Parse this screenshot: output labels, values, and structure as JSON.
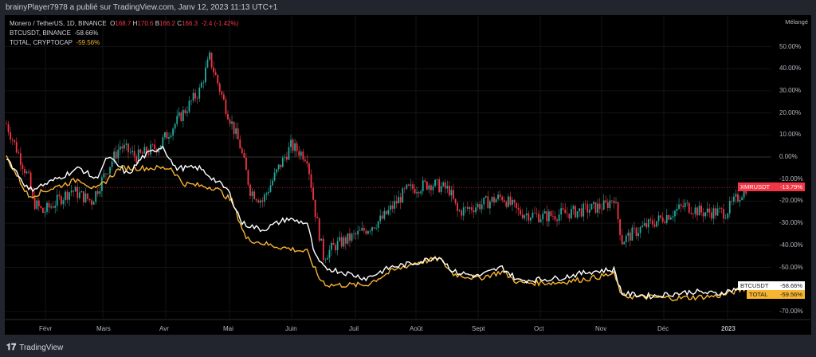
{
  "header": {
    "title": "brainyPlayer7978 a publié sur TradingView.com, Janv 12, 2023 11:13 UTC+1"
  },
  "legend": {
    "symbol": "Monero / TetherUS, 1D, BINANCE",
    "o_label": "O",
    "o": "168.7",
    "h_label": "H",
    "h": "170.6",
    "b_label": "B",
    "b": "166.2",
    "c_label": "C",
    "c": "166.3",
    "change": "-2.4 (-1.42%)",
    "btc": "BTCUSDT, BINANCE",
    "btc_val": "-58.66%",
    "total": "TOTAL, CRYPTOCAP",
    "total_val": "-59.56%"
  },
  "scale_mode": "Mélangé",
  "y_ticks": [
    "50.00%",
    "40.00%",
    "30.00%",
    "20.00%",
    "10.00%",
    "0.00%",
    "-10.00%",
    "-20.00%",
    "-30.00%",
    "-40.00%",
    "-50.00%",
    "-70.00%"
  ],
  "x_ticks": [
    "Févr",
    "Mars",
    "Avr",
    "Mai",
    "Juin",
    "Juil",
    "Août",
    "Sept",
    "Oct",
    "Nov",
    "Déc",
    "2023"
  ],
  "tags": {
    "xmr": {
      "name": "XMRUSDT",
      "value": "-13.79%"
    },
    "btc": {
      "name": "BTCUSDT",
      "value": "-58.66%"
    },
    "total": {
      "name": "TOTAL",
      "value": "-59.56%"
    }
  },
  "footer": {
    "brand": "TradingView"
  },
  "colors": {
    "up": "#26a69a",
    "down": "#f23645",
    "btc": "#ffffff",
    "total": "#f7b530"
  },
  "chart_data": {
    "type": "line",
    "unit": "percent",
    "days": 365,
    "xmr": [
      [
        0,
        15
      ],
      [
        11,
        -10
      ],
      [
        13,
        -20
      ],
      [
        18,
        -25
      ],
      [
        32,
        -15
      ],
      [
        42,
        -20
      ],
      [
        50,
        -5
      ],
      [
        56,
        5
      ],
      [
        64,
        0
      ],
      [
        75,
        5
      ],
      [
        87,
        20
      ],
      [
        95,
        30
      ],
      [
        100,
        45
      ],
      [
        107,
        25
      ],
      [
        115,
        5
      ],
      [
        120,
        -15
      ],
      [
        126,
        -20
      ],
      [
        134,
        -5
      ],
      [
        140,
        5
      ],
      [
        148,
        0
      ],
      [
        152,
        -25
      ],
      [
        156,
        -45
      ],
      [
        162,
        -40
      ],
      [
        173,
        -35
      ],
      [
        185,
        -28
      ],
      [
        197,
        -15
      ],
      [
        209,
        -12
      ],
      [
        218,
        -15
      ],
      [
        222,
        -25
      ],
      [
        232,
        -22
      ],
      [
        244,
        -18
      ],
      [
        252,
        -25
      ],
      [
        264,
        -27
      ],
      [
        279,
        -25
      ],
      [
        295,
        -22
      ],
      [
        299,
        -18
      ],
      [
        303,
        -38
      ],
      [
        311,
        -33
      ],
      [
        322,
        -28
      ],
      [
        334,
        -22
      ],
      [
        342,
        -25
      ],
      [
        354,
        -25
      ],
      [
        364,
        -13.79
      ]
    ],
    "btc": [
      [
        0,
        0
      ],
      [
        11,
        -15
      ],
      [
        20,
        -12
      ],
      [
        36,
        -5
      ],
      [
        44,
        -10
      ],
      [
        50,
        0
      ],
      [
        60,
        -8
      ],
      [
        67,
        0
      ],
      [
        77,
        5
      ],
      [
        83,
        -5
      ],
      [
        95,
        -5
      ],
      [
        109,
        -15
      ],
      [
        116,
        -30
      ],
      [
        126,
        -33
      ],
      [
        138,
        -28
      ],
      [
        148,
        -30
      ],
      [
        152,
        -45
      ],
      [
        156,
        -50
      ],
      [
        165,
        -52
      ],
      [
        177,
        -55
      ],
      [
        189,
        -50
      ],
      [
        201,
        -48
      ],
      [
        213,
        -45
      ],
      [
        220,
        -52
      ],
      [
        232,
        -54
      ],
      [
        244,
        -50
      ],
      [
        252,
        -56
      ],
      [
        271,
        -55
      ],
      [
        287,
        -52
      ],
      [
        299,
        -51
      ],
      [
        303,
        -62
      ],
      [
        318,
        -63
      ],
      [
        338,
        -61
      ],
      [
        350,
        -62
      ],
      [
        364,
        -58.66
      ]
    ],
    "total": [
      [
        0,
        0
      ],
      [
        11,
        -18
      ],
      [
        20,
        -15
      ],
      [
        36,
        -10
      ],
      [
        44,
        -15
      ],
      [
        56,
        -5
      ],
      [
        75,
        -5
      ],
      [
        81,
        -5
      ],
      [
        87,
        -12
      ],
      [
        103,
        -14
      ],
      [
        111,
        -20
      ],
      [
        118,
        -37
      ],
      [
        130,
        -40
      ],
      [
        148,
        -43
      ],
      [
        154,
        -55
      ],
      [
        158,
        -58
      ],
      [
        177,
        -58
      ],
      [
        189,
        -52
      ],
      [
        201,
        -48
      ],
      [
        213,
        -46
      ],
      [
        220,
        -53
      ],
      [
        232,
        -55
      ],
      [
        244,
        -52
      ],
      [
        252,
        -57
      ],
      [
        271,
        -57
      ],
      [
        287,
        -55
      ],
      [
        299,
        -53
      ],
      [
        303,
        -63
      ],
      [
        330,
        -64
      ],
      [
        350,
        -63
      ],
      [
        364,
        -59.56
      ]
    ]
  }
}
